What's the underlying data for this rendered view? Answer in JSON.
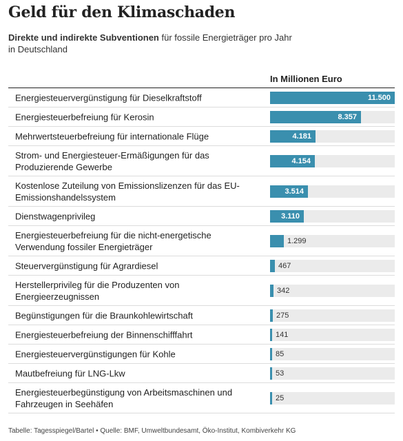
{
  "header": {
    "title": "Geld für den Klimaschaden",
    "subtitle_bold": "Direkte und indirekte Subventionen",
    "subtitle_rest": " für fossile Energieträger pro Jahr in Deutschland"
  },
  "footer": {
    "source": "Tabelle: Tagesspiegel/Bartel • Quelle: BMF, Umweltbundesamt, Öko-Institut, Kombiverkehr KG"
  },
  "colors": {
    "bar": "#3a8fae",
    "track": "#ebebeb"
  },
  "chart_data": {
    "type": "bar",
    "orientation": "horizontal",
    "title": "Geld für den Klimaschaden",
    "value_header": "In Millionen Euro",
    "xlim": [
      0,
      11500
    ],
    "categories": [
      "Energiesteuervergünstigung für Dieselkraftstoff",
      "Energiesteuerbefreiung für Kerosin",
      "Mehrwertsteuerbefreiung für internationale Flüge",
      "Strom- und Energiesteuer-Ermäßigungen für das Produzierende Gewerbe",
      "Kostenlose Zuteilung von Emissionslizenzen für das EU-Emissionshandelssystem",
      "Dienstwagenprivileg",
      "Energiesteuerbefreiung für die nicht-energetische Verwendung fossiler Energieträger",
      "Steuervergünstigung für Agrardiesel",
      "Herstellerprivileg für die Produzenten von Energieerzeugnissen",
      "Begünstigungen für die Braunkohlewirtschaft",
      "Energiesteuerbefreiung der Binnenschifffahrt",
      "Energiesteuervergünstigungen für Kohle",
      "Mautbefreiung für LNG-Lkw",
      "Energiesteuerbegünstigung von Arbeitsmaschinen und Fahrzeugen in Seehäfen"
    ],
    "values": [
      11500,
      8357,
      4181,
      4154,
      3514,
      3110,
      1299,
      467,
      342,
      275,
      141,
      85,
      53,
      25
    ],
    "value_labels": [
      "11.500",
      "8.357",
      "4.181",
      "4.154",
      "3.514",
      "3.110",
      "1.299",
      "467",
      "342",
      "275",
      "141",
      "85",
      "53",
      "25"
    ]
  }
}
